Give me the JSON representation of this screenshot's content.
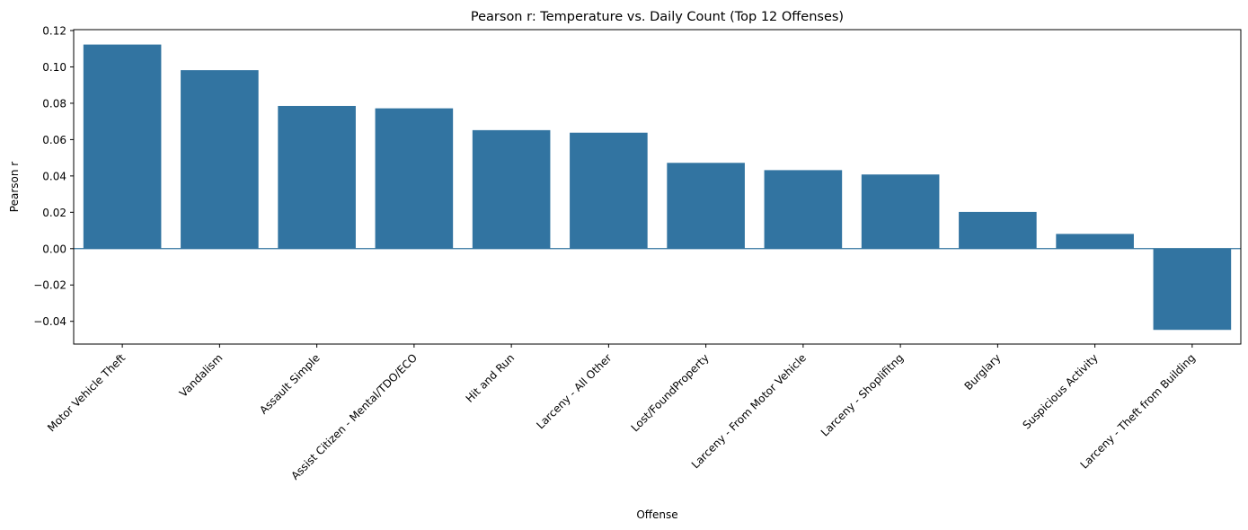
{
  "chart_data": {
    "type": "bar",
    "title": "Pearson r: Temperature vs. Daily Count (Top 12 Offenses)",
    "xlabel": "Offense",
    "ylabel": "Pearson r",
    "categories": [
      "Motor Vehicle Theft",
      "Vandalism",
      "Assault Simple",
      "Assist Citizen - Mental/TDO/ECO",
      "Hit and Run",
      "Larceny - All Other",
      "Lost/FoundProperty",
      "Larceny - From Motor Vehicle",
      "Larceny - Shoplifitng",
      "Burglary",
      "Suspicious Activity",
      "Larceny - Theft from Building"
    ],
    "values": [
      0.1123,
      0.0982,
      0.0785,
      0.0772,
      0.0652,
      0.0638,
      0.0472,
      0.0432,
      0.0408,
      0.0202,
      0.0081,
      -0.0447
    ],
    "ylim": [
      -0.0525,
      0.1205
    ],
    "yticks": [
      -0.04,
      -0.02,
      0.0,
      0.02,
      0.04,
      0.06,
      0.08,
      0.1,
      0.12
    ],
    "ytick_labels": [
      "−0.04",
      "−0.02",
      "0.00",
      "0.02",
      "0.04",
      "0.06",
      "0.08",
      "0.10",
      "0.12"
    ],
    "reference_line": 0,
    "grid": false,
    "colors": {
      "bar": "#3274a1",
      "axis": "#000000",
      "reference_line": "#3274a1"
    }
  }
}
